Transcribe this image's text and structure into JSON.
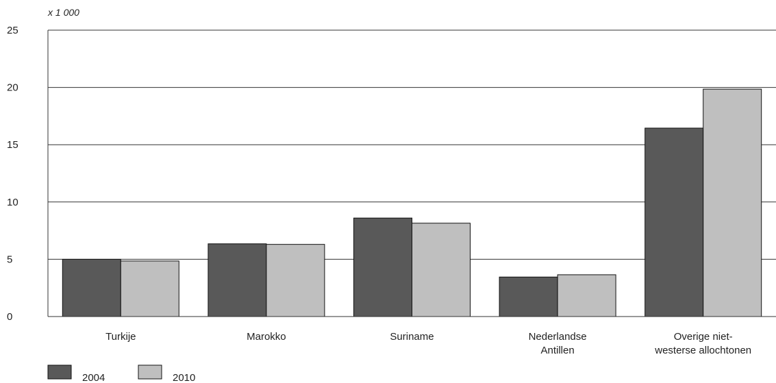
{
  "chart_data": {
    "type": "bar",
    "unit_label": "x 1 000",
    "categories": [
      [
        "Turkije"
      ],
      [
        "Marokko"
      ],
      [
        "Suriname"
      ],
      [
        "Nederlandse",
        "Antillen"
      ],
      [
        "Overige niet-",
        "westerse allochtonen"
      ]
    ],
    "series": [
      {
        "name": "2004",
        "color": "#595959",
        "values": [
          5.0,
          6.35,
          8.6,
          3.45,
          16.45
        ]
      },
      {
        "name": "2010",
        "color": "#bfbfbf",
        "values": [
          4.85,
          6.3,
          8.15,
          3.65,
          19.85
        ]
      }
    ],
    "ylim": [
      0,
      25
    ],
    "yticks": [
      0,
      5,
      10,
      15,
      20,
      25
    ],
    "grid": true,
    "legend_position": "bottom-left"
  }
}
